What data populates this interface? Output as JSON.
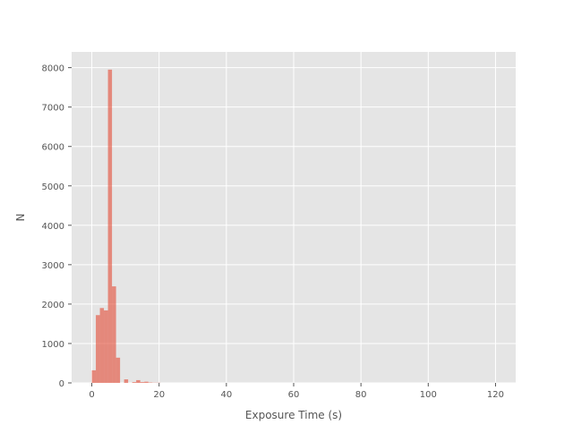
{
  "chart_data": {
    "type": "bar",
    "style": "histogram",
    "title": "",
    "xlabel": "Exposure Time (s)",
    "ylabel": "N",
    "xlim": [
      -6,
      126
    ],
    "ylim": [
      0,
      8400
    ],
    "xticks": [
      0,
      20,
      40,
      60,
      80,
      100,
      120
    ],
    "yticks": [
      0,
      1000,
      2000,
      3000,
      4000,
      5000,
      6000,
      7000,
      8000
    ],
    "grid": true,
    "background_color": "#e5e5e5",
    "grid_color": "#ffffff",
    "bar_color": "#e24a33",
    "bar_opacity": 0.6,
    "bin_width": 1.2,
    "bins": [
      {
        "x0": 0.0,
        "x1": 1.2,
        "count": 320
      },
      {
        "x0": 1.2,
        "x1": 2.4,
        "count": 1720
      },
      {
        "x0": 2.4,
        "x1": 3.6,
        "count": 1900
      },
      {
        "x0": 3.6,
        "x1": 4.8,
        "count": 1840
      },
      {
        "x0": 4.8,
        "x1": 6.0,
        "count": 7950
      },
      {
        "x0": 6.0,
        "x1": 7.2,
        "count": 2450
      },
      {
        "x0": 7.2,
        "x1": 8.4,
        "count": 640
      },
      {
        "x0": 8.4,
        "x1": 9.6,
        "count": 0
      },
      {
        "x0": 9.6,
        "x1": 10.8,
        "count": 90
      },
      {
        "x0": 10.8,
        "x1": 12.0,
        "count": 0
      },
      {
        "x0": 12.0,
        "x1": 13.2,
        "count": 20
      },
      {
        "x0": 13.2,
        "x1": 14.4,
        "count": 70
      },
      {
        "x0": 14.4,
        "x1": 15.6,
        "count": 20
      },
      {
        "x0": 15.6,
        "x1": 16.8,
        "count": 30
      },
      {
        "x0": 16.8,
        "x1": 18.0,
        "count": 10
      },
      {
        "x0": 18.0,
        "x1": 19.2,
        "count": 5
      },
      {
        "x0": 19.2,
        "x1": 20.4,
        "count": 5
      }
    ]
  }
}
